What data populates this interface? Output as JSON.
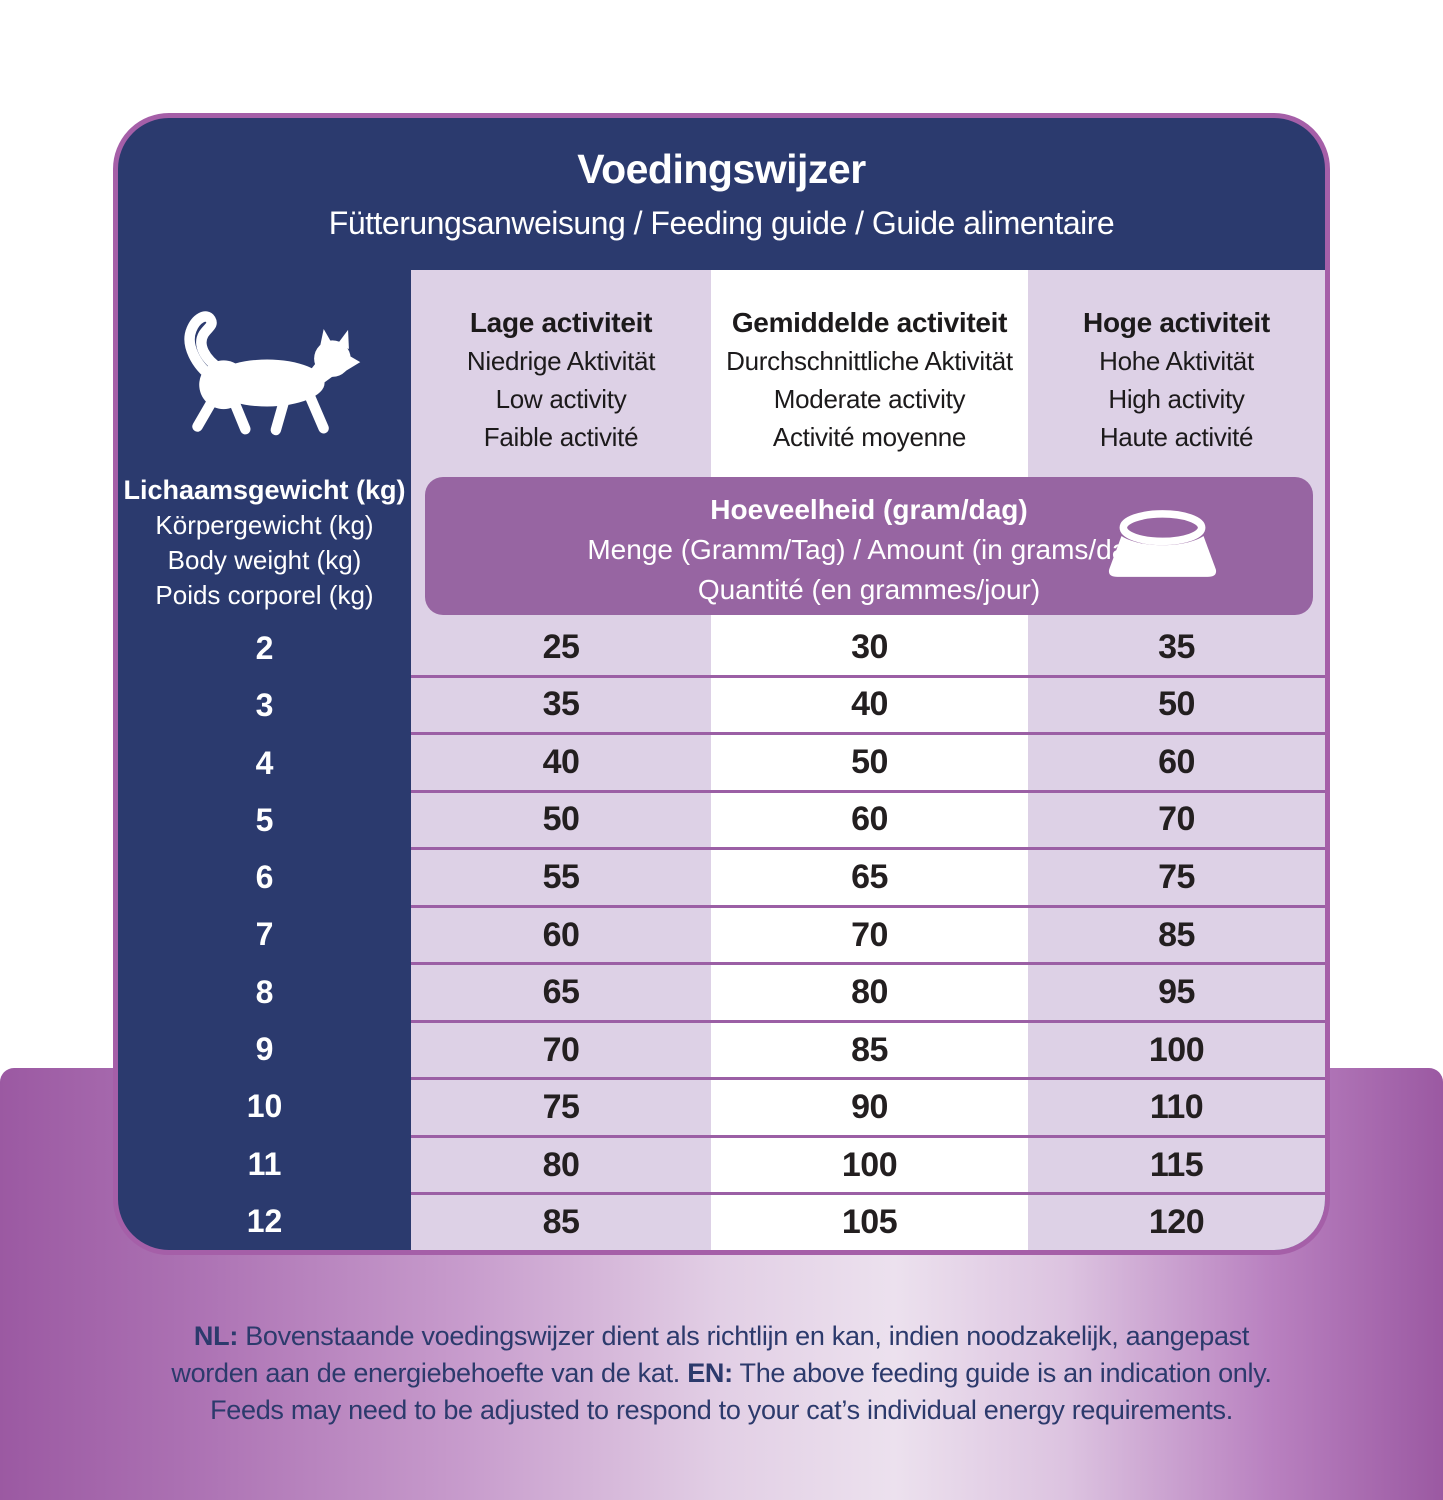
{
  "header": {
    "title": "Voedingswijzer",
    "subtitle": "Fütterungsanweisung / Feeding guide / Guide alimentaire"
  },
  "weight_column": {
    "icon": "cat-icon",
    "labels": [
      "Lichaamsgewicht (kg)",
      "Körpergewicht (kg)",
      "Body weight (kg)",
      "Poids corporel (kg)"
    ]
  },
  "activity_columns": [
    {
      "lines": [
        "Lage activiteit",
        "Niedrige Aktivität",
        "Low activity",
        "Faible activité"
      ]
    },
    {
      "lines": [
        "Gemiddelde activiteit",
        "Durchschnittliche Aktivität",
        "Moderate activity",
        "Activité moyenne"
      ]
    },
    {
      "lines": [
        "Hoge activiteit",
        "Hohe Aktivität",
        "High activity",
        "Haute activité"
      ]
    }
  ],
  "amount_banner": {
    "icon": "bowl-icon",
    "lines": [
      "Hoeveelheid (gram/dag)",
      "Menge (Gramm/Tag) / Amount (in grams/day)",
      "Quantité (en grammes/jour)"
    ]
  },
  "table": {
    "weights": [
      "2",
      "3",
      "4",
      "5",
      "6",
      "7",
      "8",
      "9",
      "10",
      "11",
      "12"
    ],
    "rows": [
      [
        "25",
        "30",
        "35"
      ],
      [
        "35",
        "40",
        "50"
      ],
      [
        "40",
        "50",
        "60"
      ],
      [
        "50",
        "60",
        "70"
      ],
      [
        "55",
        "65",
        "75"
      ],
      [
        "60",
        "70",
        "85"
      ],
      [
        "65",
        "80",
        "95"
      ],
      [
        "70",
        "85",
        "100"
      ],
      [
        "75",
        "90",
        "110"
      ],
      [
        "80",
        "100",
        "115"
      ],
      [
        "85",
        "105",
        "120"
      ]
    ]
  },
  "footnote": {
    "nl_label": "NL:",
    "nl_text": " Bovenstaande voedingswijzer dient als richtlijn en kan, indien noodzakelijk, aangepast worden aan de energiebehoefte van de kat. ",
    "en_label": "EN:",
    "en_text": " The above feeding guide is an indication only. Feeds may need to be adjusted to respond to your cat’s individual energy requirements."
  },
  "colors": {
    "navy": "#2b3a6e",
    "light_purple": "#ddd1e6",
    "banner_purple": "#9765a2",
    "border_purple": "#a55fa8",
    "row_line": "#9b5fa5",
    "value_text": "#231f20",
    "note_text": "#2c3a6c",
    "gradient_edge": "#9b59a2",
    "gradient_center": "#ece1ee"
  }
}
